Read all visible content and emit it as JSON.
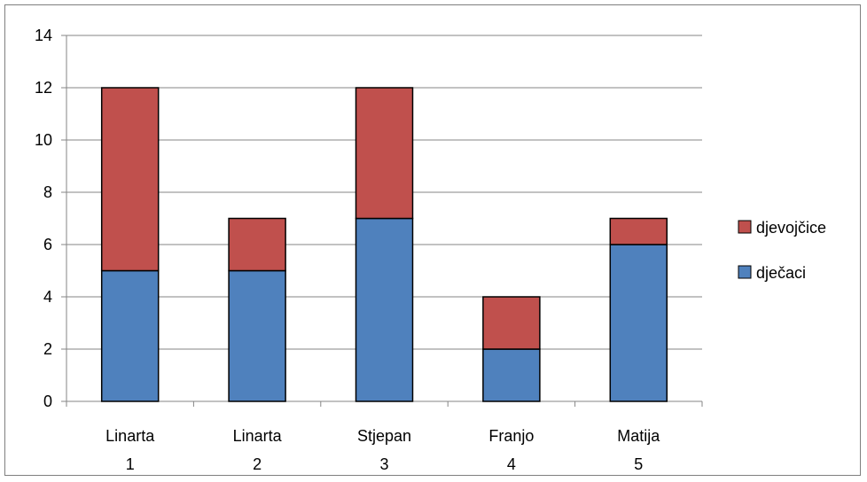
{
  "chart_data": {
    "type": "bar",
    "stacked": true,
    "categories": [
      [
        "Linarta",
        "1"
      ],
      [
        "Linarta",
        "2"
      ],
      [
        "Stjepan",
        "3"
      ],
      [
        "Franjo",
        "4"
      ],
      [
        "Matija",
        "5"
      ]
    ],
    "series": [
      {
        "name": "dječaci",
        "values": [
          5,
          5,
          7,
          2,
          6
        ],
        "color": "#4f81bd"
      },
      {
        "name": "djevojčice",
        "values": [
          7,
          2,
          5,
          2,
          1
        ],
        "color": "#c0504d"
      }
    ],
    "legend_order": [
      "djevojčice",
      "dječaci"
    ],
    "ylim": [
      0,
      14
    ],
    "yticks": [
      "0",
      "2",
      "4",
      "6",
      "8",
      "10",
      "12",
      "14"
    ],
    "grid": true,
    "legend_position": "right",
    "gridline_color": "#868686",
    "bar_outline_color": "#000000"
  }
}
